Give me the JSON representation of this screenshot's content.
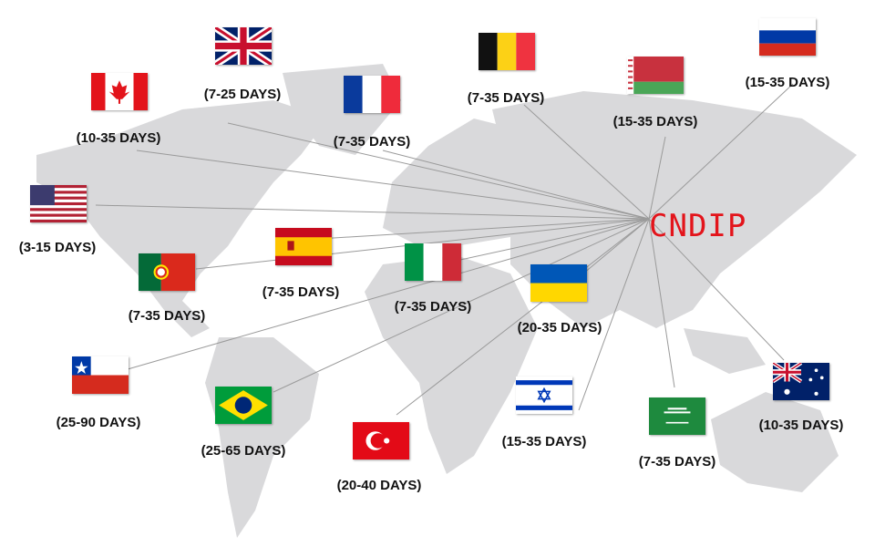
{
  "hub": {
    "label": "CNDIP",
    "color": "#e3141b"
  },
  "destinations": [
    {
      "country": "United Kingdom",
      "flag": "uk-flag",
      "days": "(7-25 DAYS)"
    },
    {
      "country": "Canada",
      "flag": "canada-flag",
      "days": "(10-35 DAYS)"
    },
    {
      "country": "France",
      "flag": "france-flag",
      "days": "(7-35 DAYS)"
    },
    {
      "country": "Belgium",
      "flag": "belgium-flag",
      "days": "(7-35 DAYS)"
    },
    {
      "country": "Belarus",
      "flag": "belarus-flag",
      "days": "(15-35 DAYS)"
    },
    {
      "country": "Russia",
      "flag": "russia-flag",
      "days": "(15-35 DAYS)"
    },
    {
      "country": "United States",
      "flag": "usa-flag",
      "days": "(3-15 DAYS)"
    },
    {
      "country": "Spain",
      "flag": "spain-flag",
      "days": "(7-35 DAYS)"
    },
    {
      "country": "Portugal",
      "flag": "portugal-flag",
      "days": "(7-35 DAYS)"
    },
    {
      "country": "Italy",
      "flag": "italy-flag",
      "days": "(7-35 DAYS)"
    },
    {
      "country": "Ukraine",
      "flag": "ukraine-flag",
      "days": "(20-35 DAYS)"
    },
    {
      "country": "Chile",
      "flag": "chile-flag",
      "days": "(25-90 DAYS)"
    },
    {
      "country": "Brazil",
      "flag": "brazil-flag",
      "days": "(25-65 DAYS)"
    },
    {
      "country": "Turkey",
      "flag": "turkey-flag",
      "days": "(20-40 DAYS)"
    },
    {
      "country": "Israel",
      "flag": "israel-flag",
      "days": "(15-35 DAYS)"
    },
    {
      "country": "Saudi Arabia",
      "flag": "saudi-flag",
      "days": "(7-35 DAYS)"
    },
    {
      "country": "Australia",
      "flag": "australia-flag",
      "days": "(10-35 DAYS)"
    }
  ]
}
